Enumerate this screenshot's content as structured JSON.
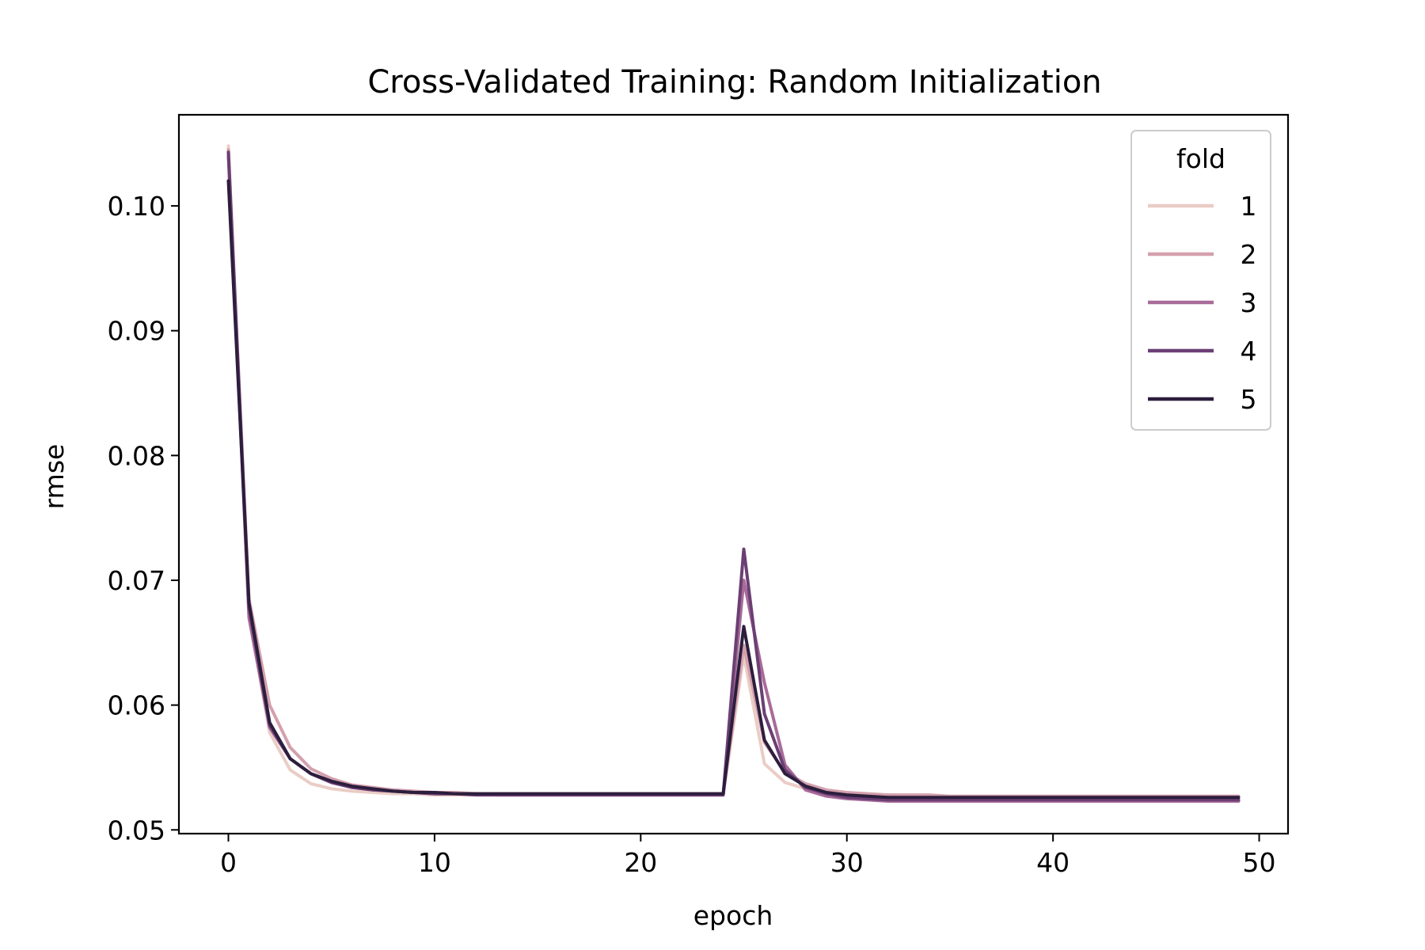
{
  "chart_data": {
    "type": "line",
    "title": "Cross-Validated Training: Random Initialization",
    "xlabel": "epoch",
    "ylabel": "rmse",
    "xlim": [
      -2.4,
      51.4
    ],
    "ylim": [
      0.0497,
      0.1073
    ],
    "xticks": [
      0,
      10,
      20,
      30,
      40,
      50
    ],
    "yticks": [
      0.05,
      0.06,
      0.07,
      0.08,
      0.09,
      0.1
    ],
    "ytick_labels": [
      "0.05",
      "0.06",
      "0.07",
      "0.08",
      "0.09",
      "0.10"
    ],
    "grid": false,
    "legend": {
      "title": "fold",
      "position": "top-right"
    },
    "series": [
      {
        "name": "1",
        "color": "#eacdc6",
        "x": [
          0,
          1,
          2,
          3,
          4,
          5,
          6,
          7,
          8,
          9,
          10,
          11,
          12,
          13,
          14,
          15,
          16,
          17,
          18,
          19,
          20,
          21,
          22,
          23,
          24,
          25,
          26,
          27,
          28,
          29,
          30,
          31,
          32,
          33,
          34,
          35,
          36,
          37,
          38,
          39,
          40,
          41,
          42,
          43,
          44,
          45,
          46,
          47,
          48,
          49
        ],
        "y": [
          0.1048,
          0.0672,
          0.0578,
          0.0548,
          0.0537,
          0.0533,
          0.0531,
          0.053,
          0.0529,
          0.0529,
          0.0528,
          0.0528,
          0.0528,
          0.0528,
          0.0528,
          0.0528,
          0.0528,
          0.0528,
          0.0528,
          0.0528,
          0.0528,
          0.0528,
          0.0528,
          0.0528,
          0.0528,
          0.064,
          0.0553,
          0.0538,
          0.0533,
          0.0531,
          0.0529,
          0.0528,
          0.0528,
          0.0527,
          0.0527,
          0.0527,
          0.0527,
          0.0527,
          0.0527,
          0.0527,
          0.0527,
          0.0527,
          0.0527,
          0.0527,
          0.0527,
          0.0527,
          0.0527,
          0.0527,
          0.0527,
          0.0527
        ]
      },
      {
        "name": "2",
        "color": "#d4a0ad",
        "x": [
          0,
          1,
          2,
          3,
          4,
          5,
          6,
          7,
          8,
          9,
          10,
          11,
          12,
          13,
          14,
          15,
          16,
          17,
          18,
          19,
          20,
          21,
          22,
          23,
          24,
          25,
          26,
          27,
          28,
          29,
          30,
          31,
          32,
          33,
          34,
          35,
          36,
          37,
          38,
          39,
          40,
          41,
          42,
          43,
          44,
          45,
          46,
          47,
          48,
          49
        ],
        "y": [
          0.1045,
          0.0685,
          0.06,
          0.0566,
          0.0549,
          0.0541,
          0.0536,
          0.0534,
          0.0532,
          0.0531,
          0.053,
          0.053,
          0.0529,
          0.0529,
          0.0529,
          0.0529,
          0.0529,
          0.0529,
          0.0529,
          0.0529,
          0.0529,
          0.0529,
          0.0529,
          0.0529,
          0.0529,
          0.0648,
          0.057,
          0.0546,
          0.0537,
          0.0532,
          0.053,
          0.0529,
          0.0528,
          0.0528,
          0.0528,
          0.0527,
          0.0527,
          0.0527,
          0.0527,
          0.0527,
          0.0527,
          0.0527,
          0.0527,
          0.0527,
          0.0527,
          0.0527,
          0.0527,
          0.0527,
          0.0527,
          0.0527
        ]
      },
      {
        "name": "3",
        "color": "#a86b99",
        "x": [
          0,
          1,
          2,
          3,
          4,
          5,
          6,
          7,
          8,
          9,
          10,
          11,
          12,
          13,
          14,
          15,
          16,
          17,
          18,
          19,
          20,
          21,
          22,
          23,
          24,
          25,
          26,
          27,
          28,
          29,
          30,
          31,
          32,
          33,
          34,
          35,
          36,
          37,
          38,
          39,
          40,
          41,
          42,
          43,
          44,
          45,
          46,
          47,
          48,
          49
        ],
        "y": [
          0.104,
          0.067,
          0.0582,
          0.0557,
          0.0545,
          0.0538,
          0.0534,
          0.0532,
          0.0531,
          0.053,
          0.0529,
          0.0529,
          0.0529,
          0.0528,
          0.0528,
          0.0528,
          0.0528,
          0.0528,
          0.0528,
          0.0528,
          0.0528,
          0.0528,
          0.0528,
          0.0528,
          0.0528,
          0.07,
          0.0618,
          0.0552,
          0.0532,
          0.0527,
          0.0525,
          0.0524,
          0.0523,
          0.0523,
          0.0523,
          0.0523,
          0.0523,
          0.0523,
          0.0523,
          0.0523,
          0.0523,
          0.0523,
          0.0523,
          0.0523,
          0.0523,
          0.0523,
          0.0523,
          0.0523,
          0.0523,
          0.0523
        ]
      },
      {
        "name": "4",
        "color": "#6b3f74",
        "x": [
          0,
          1,
          2,
          3,
          4,
          5,
          6,
          7,
          8,
          9,
          10,
          11,
          12,
          13,
          14,
          15,
          16,
          17,
          18,
          19,
          20,
          21,
          22,
          23,
          24,
          25,
          26,
          27,
          28,
          29,
          30,
          31,
          32,
          33,
          34,
          35,
          36,
          37,
          38,
          39,
          40,
          41,
          42,
          43,
          44,
          45,
          46,
          47,
          48,
          49
        ],
        "y": [
          0.1043,
          0.0678,
          0.0584,
          0.0557,
          0.0545,
          0.0538,
          0.0534,
          0.0532,
          0.0531,
          0.053,
          0.0529,
          0.0529,
          0.0528,
          0.0528,
          0.0528,
          0.0528,
          0.0528,
          0.0528,
          0.0528,
          0.0528,
          0.0528,
          0.0528,
          0.0528,
          0.0528,
          0.0528,
          0.0725,
          0.0593,
          0.0548,
          0.0534,
          0.0529,
          0.0526,
          0.0525,
          0.0524,
          0.0524,
          0.0524,
          0.0524,
          0.0524,
          0.0524,
          0.0524,
          0.0524,
          0.0524,
          0.0524,
          0.0524,
          0.0524,
          0.0524,
          0.0524,
          0.0524,
          0.0524,
          0.0524,
          0.0524
        ]
      },
      {
        "name": "5",
        "color": "#2c1e3d",
        "x": [
          0,
          1,
          2,
          3,
          4,
          5,
          6,
          7,
          8,
          9,
          10,
          11,
          12,
          13,
          14,
          15,
          16,
          17,
          18,
          19,
          20,
          21,
          22,
          23,
          24,
          25,
          26,
          27,
          28,
          29,
          30,
          31,
          32,
          33,
          34,
          35,
          36,
          37,
          38,
          39,
          40,
          41,
          42,
          43,
          44,
          45,
          46,
          47,
          48,
          49
        ],
        "y": [
          0.102,
          0.0682,
          0.0586,
          0.0557,
          0.0545,
          0.0539,
          0.0535,
          0.0533,
          0.0531,
          0.053,
          0.053,
          0.0529,
          0.0529,
          0.0529,
          0.0529,
          0.0529,
          0.0529,
          0.0529,
          0.0529,
          0.0529,
          0.0529,
          0.0529,
          0.0529,
          0.0529,
          0.0529,
          0.0663,
          0.0572,
          0.0545,
          0.0535,
          0.053,
          0.0528,
          0.0527,
          0.0526,
          0.0526,
          0.0526,
          0.0526,
          0.0526,
          0.0526,
          0.0526,
          0.0526,
          0.0526,
          0.0526,
          0.0526,
          0.0526,
          0.0526,
          0.0526,
          0.0526,
          0.0526,
          0.0526,
          0.0526
        ]
      }
    ]
  }
}
